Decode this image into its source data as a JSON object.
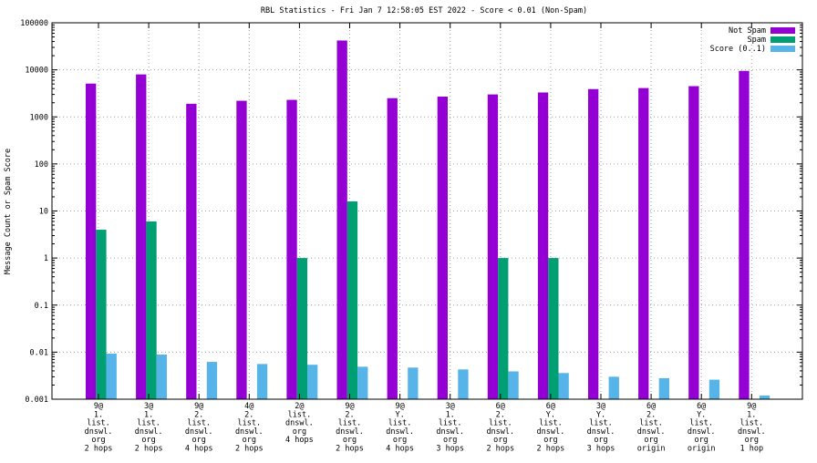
{
  "chart_data": {
    "type": "bar",
    "title": "RBL Statistics - Fri Jan  7 12:58:05 EST 2022 - Score < 0.01 (Non-Spam)",
    "xlabel": "",
    "ylabel": "Message Count or Spam Score",
    "yscale": "log",
    "ylim": [
      0.001,
      100000
    ],
    "yticks": [
      "0.001",
      "0.01",
      "0.1",
      "1",
      "10",
      "100",
      "1000",
      "10000",
      "100000"
    ],
    "grid": true,
    "legend_position": "top-right",
    "categories": [
      [
        "9@",
        "1.",
        "list.",
        "dnswl.",
        "org",
        "2 hops"
      ],
      [
        "3@",
        "1.",
        "list.",
        "dnswl.",
        "org",
        "2 hops"
      ],
      [
        "9@",
        "2.",
        "list.",
        "dnswl.",
        "org",
        "4 hops"
      ],
      [
        "4@",
        "2.",
        "list.",
        "dnswl.",
        "org",
        "2 hops"
      ],
      [
        "2@",
        "list.",
        "dnswl.",
        "org",
        "4 hops"
      ],
      [
        "9@",
        "2.",
        "list.",
        "dnswl.",
        "org",
        "2 hops"
      ],
      [
        "9@",
        "Y.",
        "list.",
        "dnswl.",
        "org",
        "4 hops"
      ],
      [
        "3@",
        "1.",
        "list.",
        "dnswl.",
        "org",
        "3 hops"
      ],
      [
        "6@",
        "2.",
        "list.",
        "dnswl.",
        "org",
        "2 hops"
      ],
      [
        "6@",
        "Y.",
        "list.",
        "dnswl.",
        "org",
        "2 hops"
      ],
      [
        "3@",
        "Y.",
        "list.",
        "dnswl.",
        "org",
        "3 hops"
      ],
      [
        "6@",
        "2.",
        "list.",
        "dnswl.",
        "org",
        "origin"
      ],
      [
        "6@",
        "Y.",
        "list.",
        "dnswl.",
        "org",
        "origin"
      ],
      [
        "9@",
        "1.",
        "list.",
        "dnswl.",
        "org",
        "1 hop"
      ]
    ],
    "series": [
      {
        "name": "Not Spam",
        "color": "#9400d3",
        "values": [
          5100,
          8000,
          1900,
          2200,
          2300,
          42000,
          2500,
          2700,
          3000,
          3300,
          3900,
          4100,
          4500,
          9500
        ]
      },
      {
        "name": "Spam",
        "color": "#009e73",
        "values": [
          4,
          6,
          null,
          null,
          1,
          16,
          null,
          null,
          1,
          1,
          null,
          null,
          null,
          null
        ]
      },
      {
        "name": "Score (0..1)",
        "color": "#56b4e9",
        "values": [
          0.0093,
          0.0089,
          0.0062,
          0.0056,
          0.0054,
          0.0049,
          0.0047,
          0.0043,
          0.0039,
          0.0036,
          0.003,
          0.0028,
          0.0026,
          0.0012
        ]
      }
    ]
  }
}
